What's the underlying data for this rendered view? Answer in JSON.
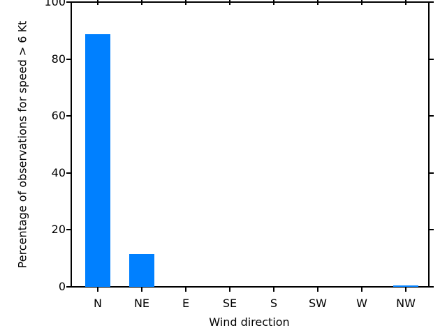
{
  "chart_data": {
    "type": "bar",
    "title": "",
    "categories": [
      "N",
      "NE",
      "E",
      "SE",
      "S",
      "SW",
      "W",
      "NW"
    ],
    "values": [
      88.8,
      11.5,
      0,
      0,
      0,
      0,
      0,
      0.5
    ],
    "xlabel": "Wind direction",
    "ylabel": "Percentage of observations for speed > 6 Kt",
    "ylim": [
      0,
      100
    ],
    "yticks": [
      0,
      20,
      40,
      60,
      80,
      100
    ],
    "bar_color": "#0080ff",
    "axis_color": "#000000",
    "grid": false,
    "legend": "none",
    "tick_direction": "out",
    "frame": "full-box"
  }
}
